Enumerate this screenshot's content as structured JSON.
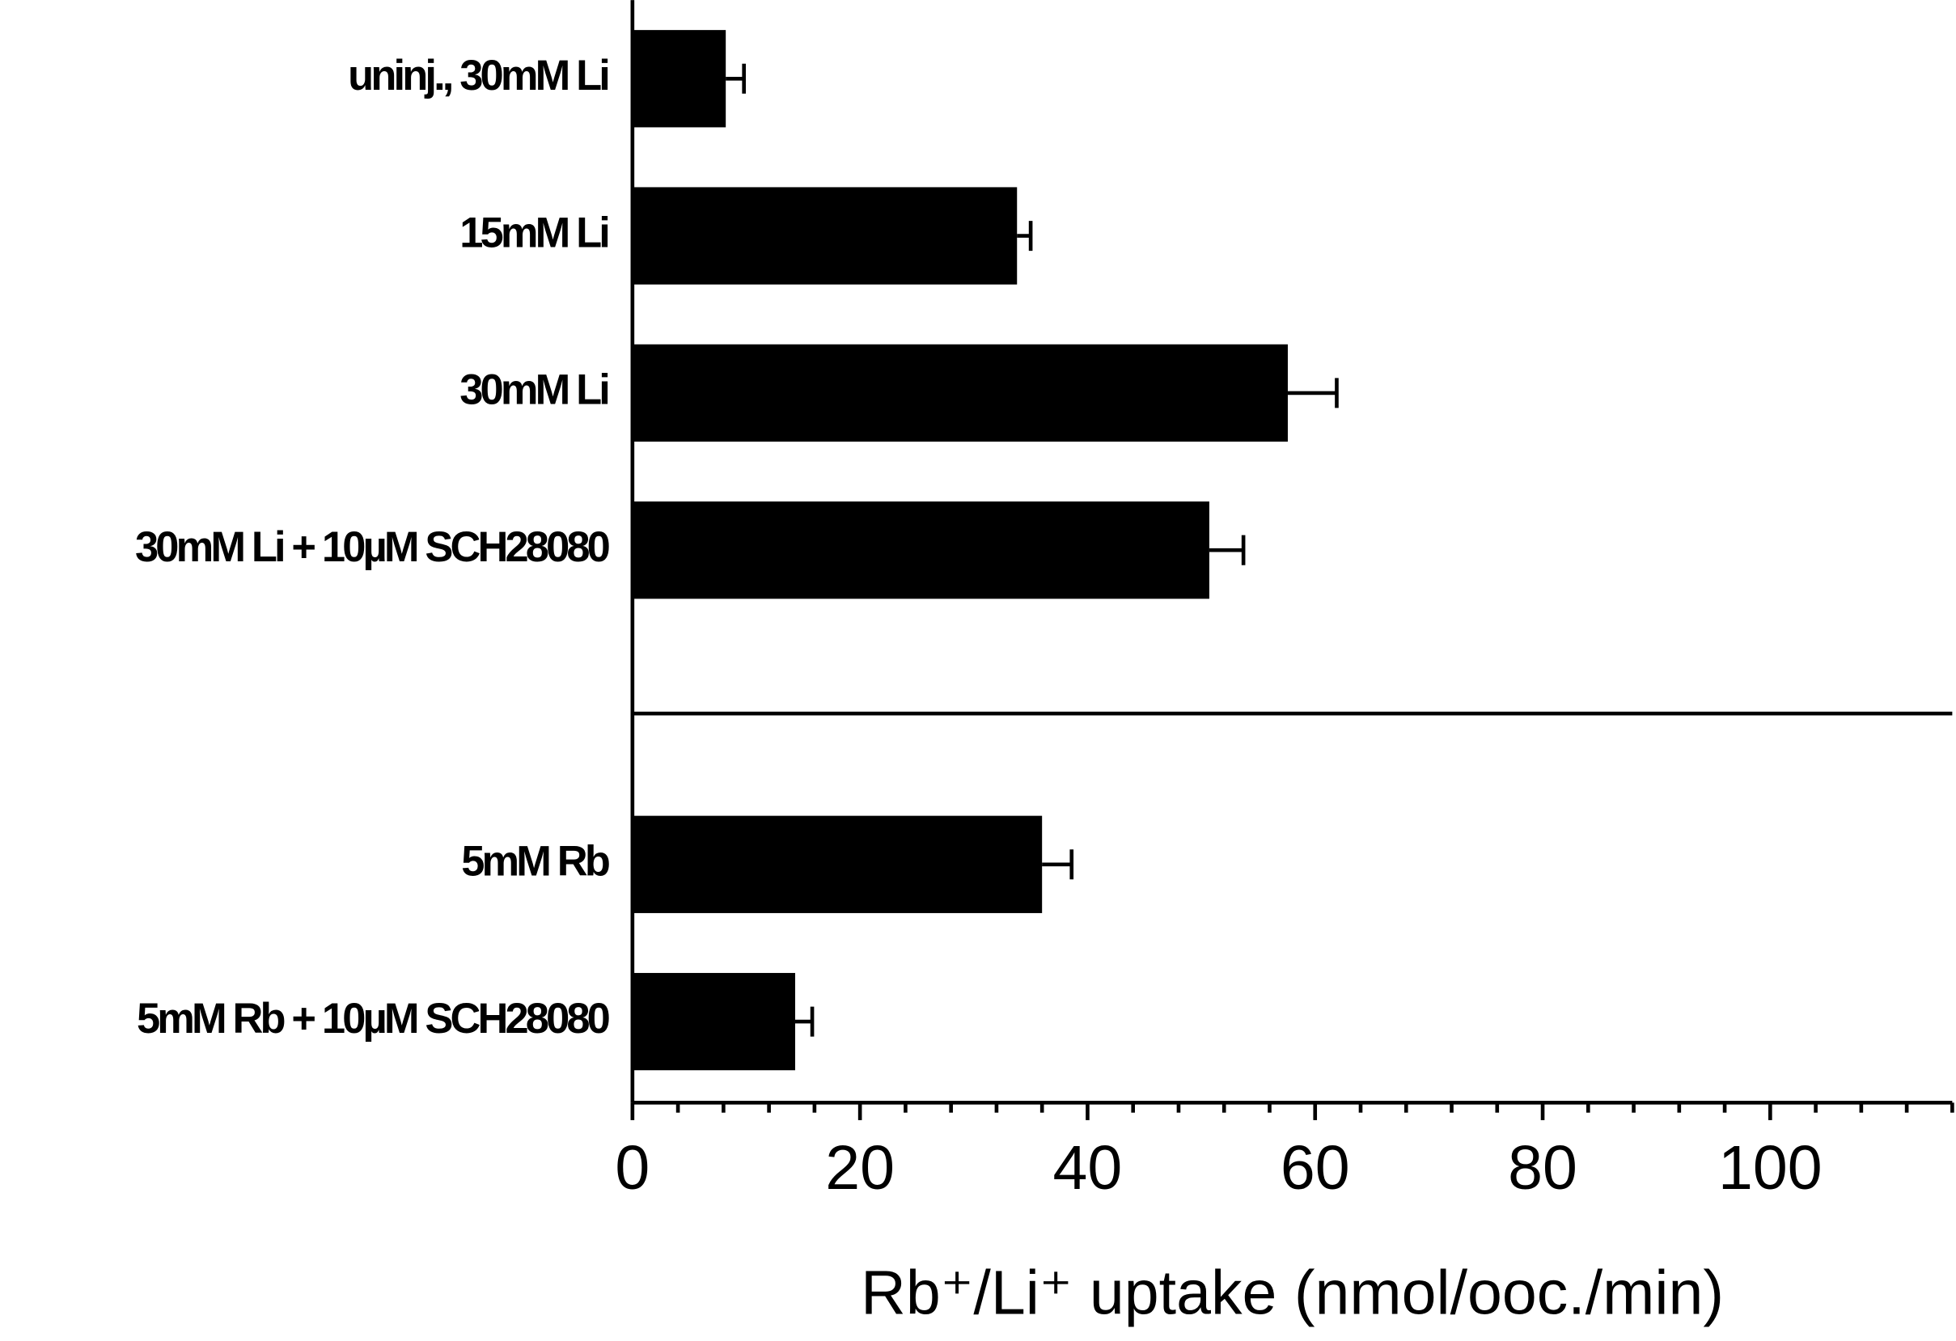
{
  "chart_data": {
    "type": "bar",
    "orientation": "horizontal",
    "categories": [
      "uninj., 30mM Li",
      "15mM Li",
      "30mM Li",
      "30mM Li + 10µM SCH28080",
      null,
      "5mM Rb",
      "5mM Rb + 10µM SCH28080"
    ],
    "values": [
      8.2,
      33.8,
      57.6,
      50.7,
      null,
      36.0,
      14.3
    ],
    "errors": [
      1.6,
      1.2,
      4.3,
      3.0,
      null,
      2.6,
      1.5
    ],
    "color": "#000000",
    "xlabel": "Rb⁺/Li⁺ uptake (nmol/ooc./min)",
    "xlim": [
      0,
      116
    ],
    "xticks": [
      0,
      20,
      40,
      60,
      80,
      100
    ],
    "xminorticks": [
      4,
      8,
      12,
      16,
      24,
      28,
      32,
      36,
      44,
      48,
      52,
      56,
      64,
      68,
      72,
      76,
      84,
      88,
      92,
      96,
      104,
      108,
      112,
      116
    ],
    "grid": false
  }
}
